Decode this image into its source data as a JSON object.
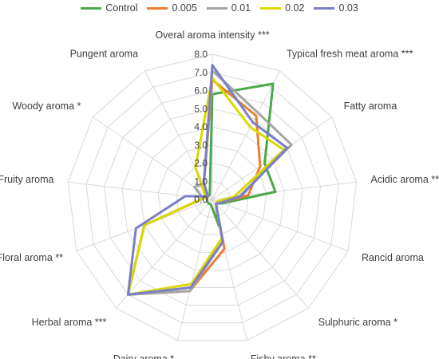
{
  "chart_data": {
    "type": "radar",
    "axes": [
      "Overal aroma intensity ***",
      "Typical fresh meat aroma ***",
      "Fatty aroma",
      "Acidic aroma **",
      "Rancid aroma",
      "Sulphuric aroma *",
      "Fishy aroma **",
      "Dairy aroma *",
      "Herbal aroma ***",
      "Floral aroma **",
      "Fruity aroma",
      "Woody aroma *",
      "Pungent aroma"
    ],
    "ticks": [
      "0.0",
      "1.0",
      "2.0",
      "3.0",
      "4.0",
      "5.0",
      "6.0",
      "7.0",
      "8.0"
    ],
    "rmin": 0,
    "rmax": 8,
    "grid": true,
    "legend_position": "top",
    "series": [
      {
        "name": "Control",
        "color": "#4aa84a",
        "values": [
          5.8,
          7.2,
          3.5,
          3.5,
          0.6,
          0.3,
          1.5,
          0.3,
          0.3,
          0.3,
          0.3,
          0.3,
          0.3
        ]
      },
      {
        "name": "0.005",
        "color": "#ed7d31",
        "values": [
          6.6,
          5.2,
          3.2,
          2.0,
          0.5,
          0.3,
          2.8,
          5.2,
          7.0,
          4.0,
          0.5,
          0.3,
          1.0
        ]
      },
      {
        "name": "0.01",
        "color": "#a5a5a5",
        "values": [
          7.1,
          5.4,
          5.3,
          1.5,
          0.5,
          0.3,
          2.4,
          5.2,
          7.0,
          4.0,
          0.5,
          1.2,
          1.0
        ]
      },
      {
        "name": "0.02",
        "color": "#d9d900",
        "values": [
          6.7,
          4.5,
          4.8,
          1.2,
          0.3,
          0.3,
          2.2,
          4.8,
          7.0,
          4.0,
          0.5,
          0.5,
          2.0
        ]
      },
      {
        "name": "0.03",
        "color": "#7b7fc8",
        "values": [
          7.4,
          4.8,
          5.0,
          1.6,
          0.5,
          0.3,
          2.4,
          5.0,
          7.0,
          4.5,
          1.5,
          0.3,
          1.0
        ]
      }
    ]
  }
}
